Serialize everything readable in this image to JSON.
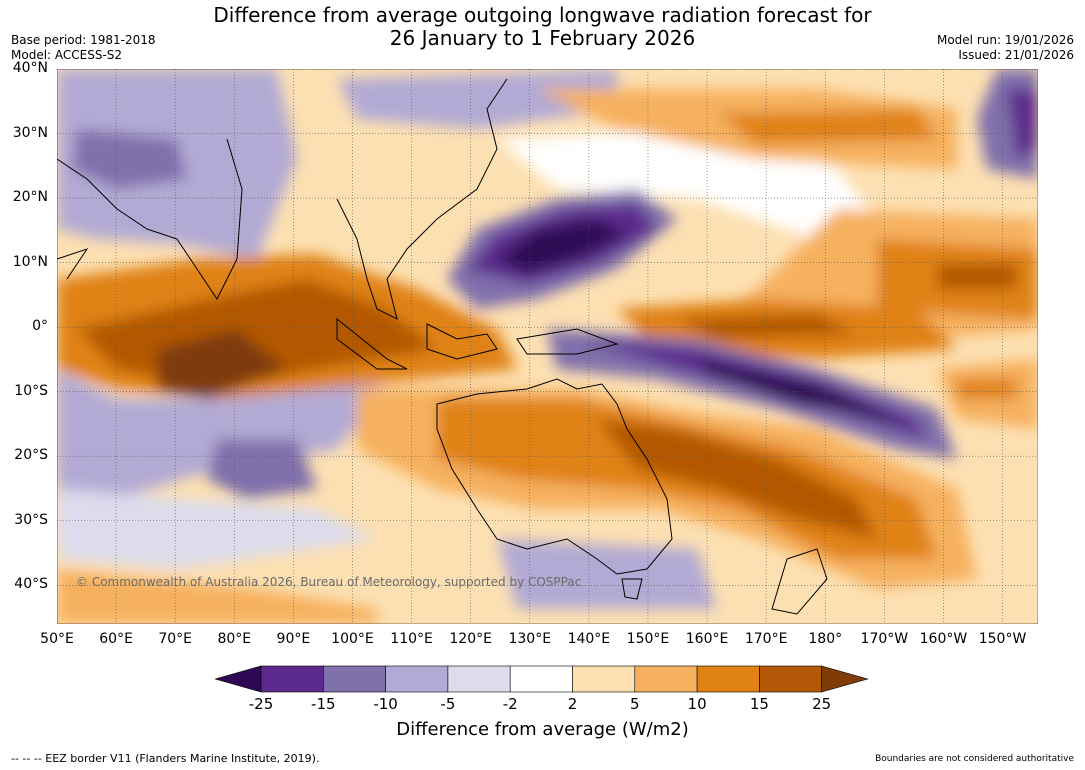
{
  "title": {
    "line1": "Difference from average outgoing longwave radiation forecast for",
    "line2": "26 January to 1 February 2026"
  },
  "meta_left": {
    "base_period": "Base period: 1981-2018",
    "model": "Model: ACCESS-S2"
  },
  "meta_right": {
    "model_run": "Model run: 19/01/2026",
    "issued": "Issued: 21/01/2026"
  },
  "latitude_labels": [
    "40°N",
    "30°N",
    "20°N",
    "10°N",
    "0°",
    "10°S",
    "20°S",
    "30°S",
    "40°S"
  ],
  "latitude_values": [
    40,
    30,
    20,
    10,
    0,
    -10,
    -20,
    -30,
    -40
  ],
  "longitude_labels": [
    "50°E",
    "60°E",
    "70°E",
    "80°E",
    "90°E",
    "100°E",
    "110°E",
    "120°E",
    "130°E",
    "140°E",
    "150°E",
    "160°E",
    "170°E",
    "180°",
    "170°W",
    "160°W",
    "150°W"
  ],
  "longitude_values": [
    50,
    60,
    70,
    80,
    90,
    100,
    110,
    120,
    130,
    140,
    150,
    160,
    170,
    180,
    190,
    200,
    210
  ],
  "map_extent": {
    "lon_min": 50,
    "lon_max": 216,
    "lat_min": -46,
    "lat_max": 40
  },
  "copyright": "© Commonwealth of Australia 2026, Bureau of Meteorology, supported by COSPPac",
  "colorbar": {
    "labels": [
      "-25",
      "-15",
      "-10",
      "-5",
      "-2",
      "2",
      "5",
      "10",
      "15",
      "25"
    ],
    "colors": [
      "#2e0854",
      "#5b2a8c",
      "#8070ac",
      "#b2aad4",
      "#dcdcec",
      "#ffffff",
      "#fde0b2",
      "#f6b15e",
      "#e08214",
      "#b35806",
      "#7f3b08"
    ],
    "title": "Difference from average (W/m2)"
  },
  "eez_note": "--  --  -- EEZ border V11 (Flanders Marine Institute, 2019).",
  "disclaimer": "Boundaries are not considered authoritative"
}
